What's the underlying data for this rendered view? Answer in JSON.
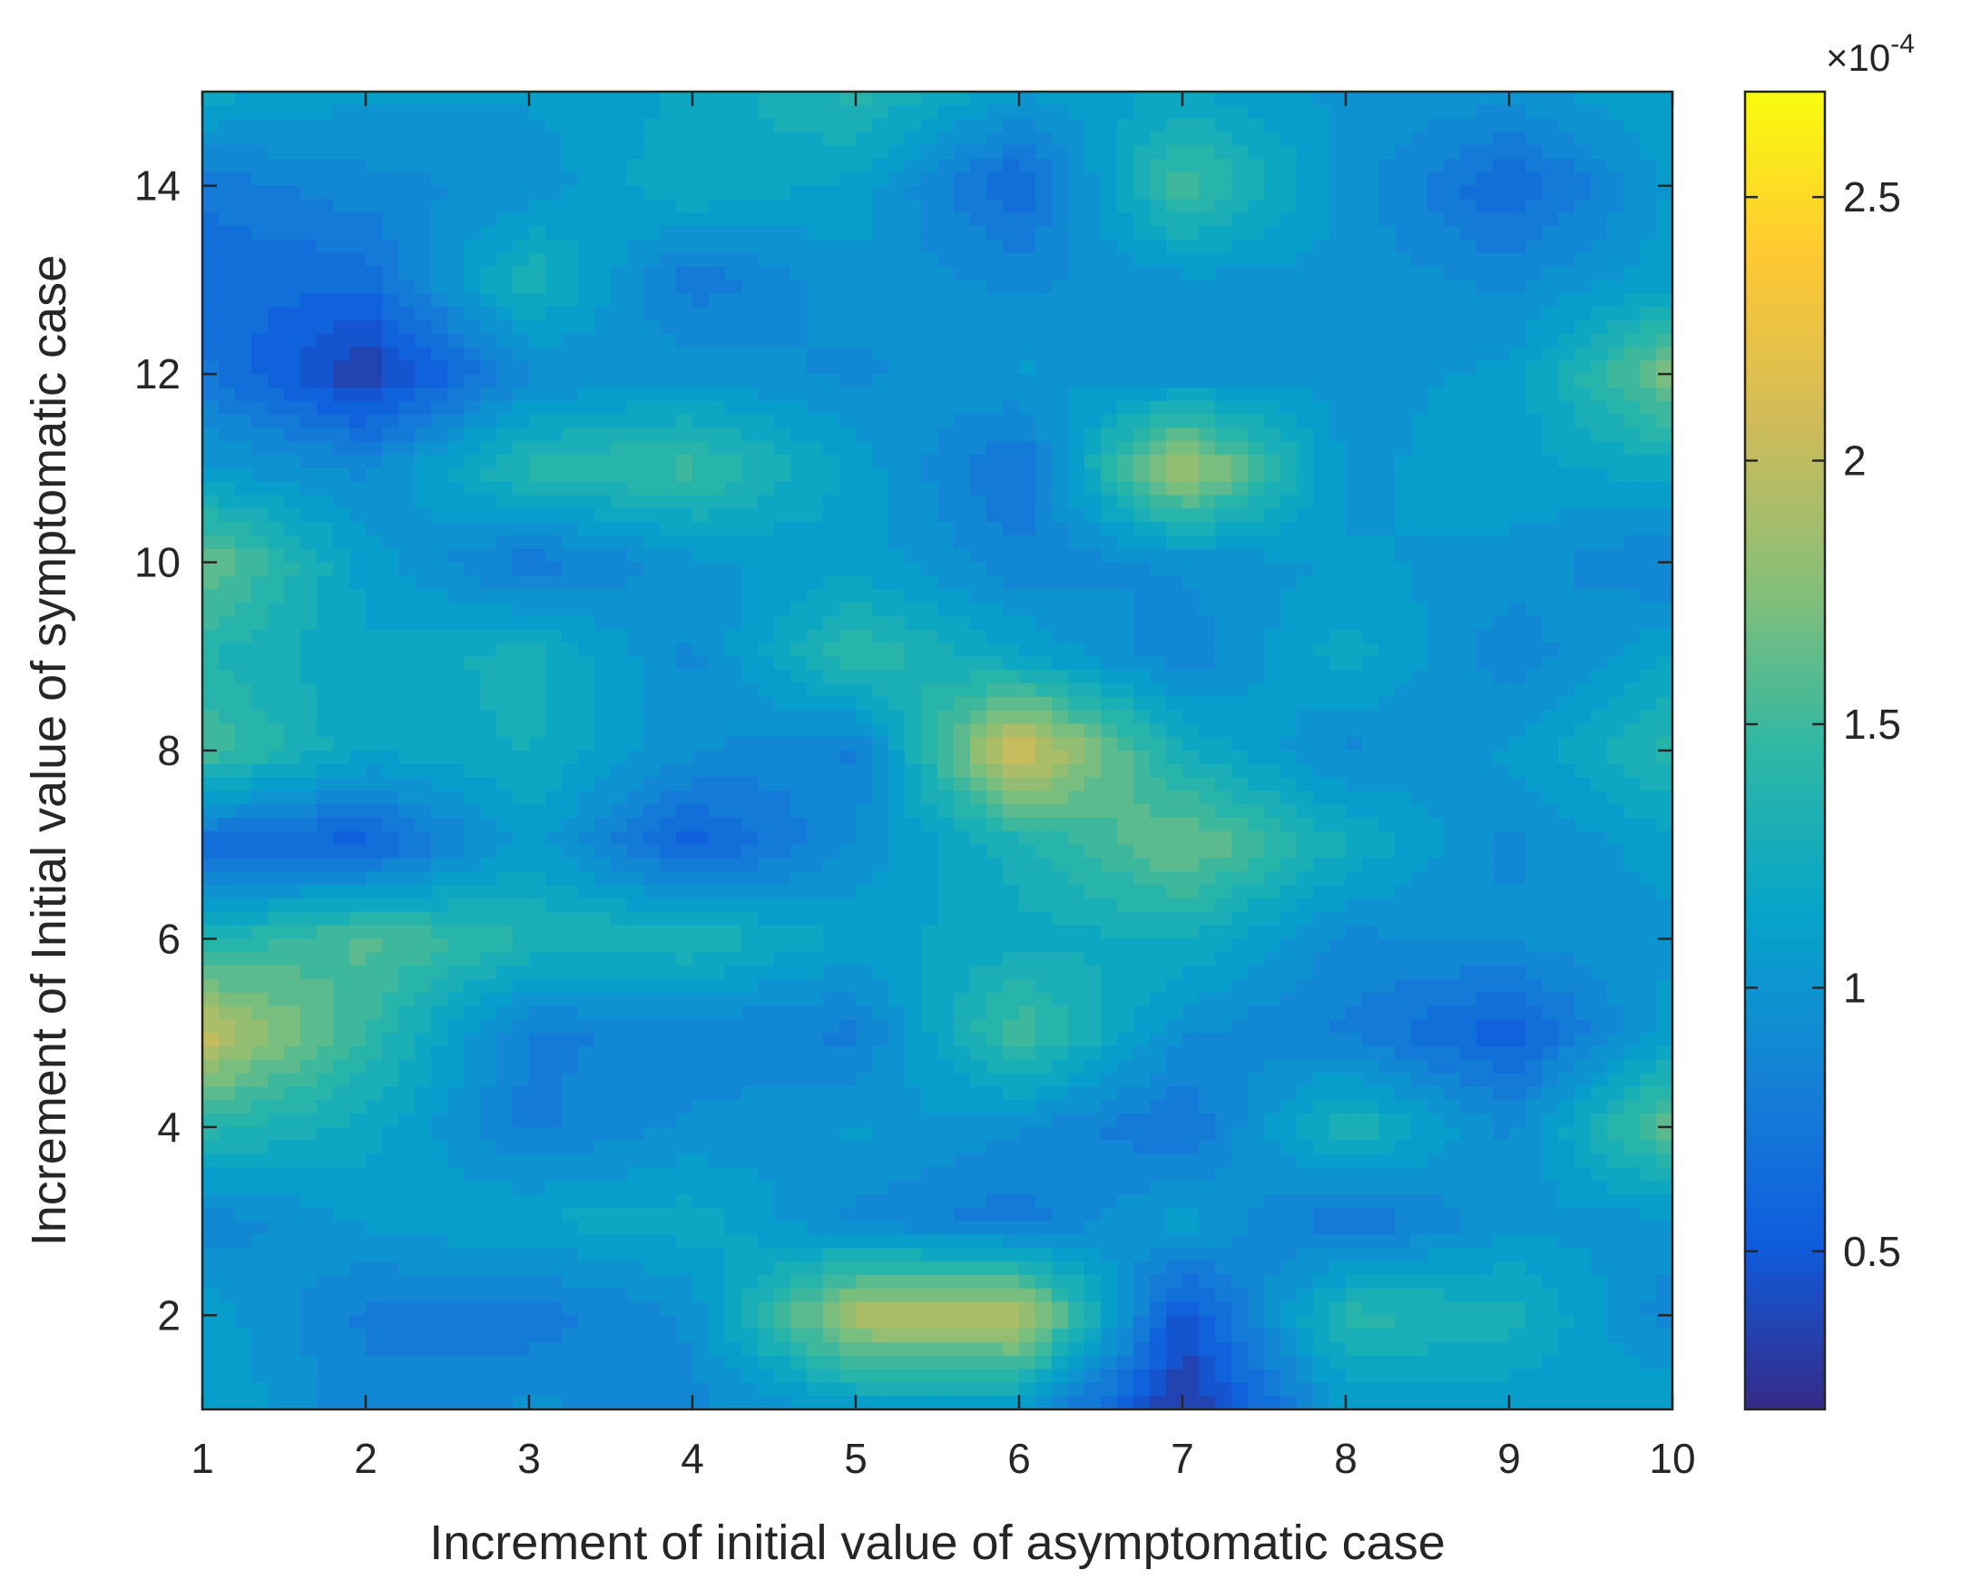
{
  "chart_data": {
    "type": "heatmap",
    "title": "",
    "xlabel": "Increment of initial value of asymptomatic case",
    "ylabel": "Increment of Initial value of symptomatic case",
    "x": [
      1,
      2,
      3,
      4,
      5,
      6,
      7,
      8,
      9,
      10
    ],
    "y": [
      1,
      2,
      3,
      4,
      5,
      6,
      7,
      8,
      9,
      10,
      11,
      12,
      13,
      14,
      15
    ],
    "xlim": [
      1,
      10
    ],
    "ylim": [
      1,
      15
    ],
    "xticks": [
      "1",
      "2",
      "3",
      "4",
      "5",
      "6",
      "7",
      "8",
      "9",
      "10"
    ],
    "yticks": [
      "2",
      "4",
      "6",
      "8",
      "10",
      "12",
      "14"
    ],
    "colorbar": {
      "range": [
        2e-05,
        0.00027
      ],
      "ticks": [
        "0.5",
        "1",
        "1.5",
        "2",
        "2.5"
      ],
      "exponent_label": "×10",
      "exponent_power": "-4",
      "colormap": "parula"
    },
    "z_units": "1e-4",
    "z": [
      [
        1.15,
        0.85,
        0.95,
        0.9,
        1.05,
        1.05,
        0.25,
        1.05,
        1.05,
        1.15
      ],
      [
        1.1,
        0.8,
        0.75,
        0.95,
        1.95,
        2.0,
        0.45,
        1.4,
        1.3,
        0.85
      ],
      [
        0.85,
        1.05,
        1.15,
        1.2,
        0.9,
        0.75,
        1.1,
        0.7,
        1.0,
        1.0
      ],
      [
        1.4,
        1.2,
        0.8,
        0.95,
        1.05,
        0.95,
        0.7,
        1.35,
        0.9,
        1.65
      ],
      [
        2.05,
        1.45,
        0.8,
        0.85,
        0.8,
        1.55,
        0.95,
        0.8,
        0.55,
        1.1
      ],
      [
        1.3,
        1.6,
        1.35,
        1.35,
        1.1,
        1.2,
        1.25,
        0.9,
        0.95,
        1.0
      ],
      [
        0.65,
        0.55,
        1.1,
        0.55,
        0.95,
        1.3,
        1.7,
        1.25,
        0.9,
        1.1
      ],
      [
        1.55,
        1.15,
        1.25,
        0.95,
        0.8,
        2.15,
        1.25,
        0.9,
        1.05,
        1.4
      ],
      [
        1.35,
        1.15,
        1.3,
        0.9,
        1.45,
        1.15,
        0.85,
        1.2,
        0.85,
        1.15
      ],
      [
        1.7,
        1.1,
        0.75,
        1.0,
        1.1,
        0.85,
        0.95,
        1.05,
        1.0,
        0.8
      ],
      [
        1.05,
        0.9,
        1.4,
        1.5,
        1.1,
        0.7,
        1.95,
        1.0,
        1.1,
        1.2
      ],
      [
        0.75,
        0.3,
        0.9,
        1.0,
        0.9,
        1.05,
        0.95,
        1.0,
        1.05,
        1.75
      ],
      [
        0.65,
        0.65,
        1.35,
        0.75,
        1.0,
        0.9,
        1.0,
        1.0,
        0.9,
        1.1
      ],
      [
        0.75,
        0.9,
        0.95,
        1.25,
        1.1,
        0.6,
        1.55,
        1.0,
        0.6,
        1.05
      ],
      [
        1.2,
        1.05,
        1.05,
        1.15,
        1.4,
        1.05,
        1.15,
        1.0,
        1.0,
        1.15
      ]
    ]
  }
}
